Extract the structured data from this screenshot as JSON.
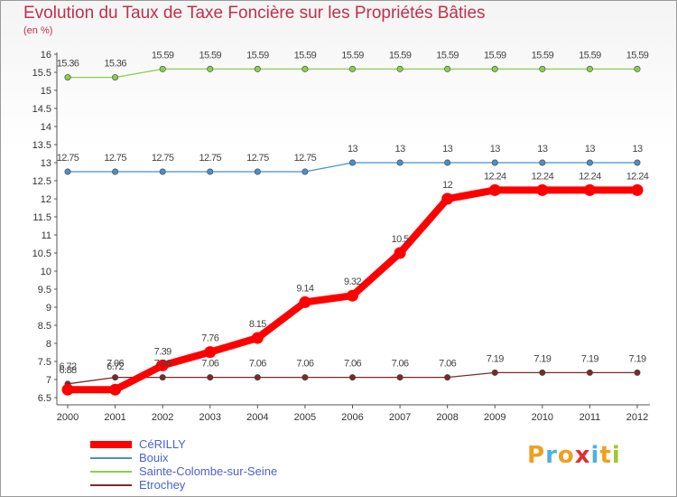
{
  "chart_data": {
    "type": "line",
    "title": "Evolution du Taux de Taxe Foncière sur les Propriétés Bâties",
    "ylabel": "(en %)",
    "xlabel": "",
    "x": [
      "2000",
      "2001",
      "2002",
      "2003",
      "2004",
      "2005",
      "2006",
      "2007",
      "2008",
      "2009",
      "2010",
      "2011",
      "2012"
    ],
    "ylim": [
      6.5,
      16
    ],
    "yticks": [
      6.5,
      7,
      7.5,
      8,
      8.5,
      9,
      9.5,
      10,
      10.5,
      11,
      11.5,
      12,
      12.5,
      13,
      13.5,
      14,
      14.5,
      15,
      15.5,
      16
    ],
    "grid": false,
    "legend_position": "bottom-left",
    "series": [
      {
        "name": "CéRILLY",
        "color": "#ff0000",
        "values": [
          6.72,
          6.72,
          7.39,
          7.76,
          8.15,
          9.14,
          9.32,
          10.5,
          12,
          12.24,
          12.24,
          12.24,
          12.24
        ],
        "labels": [
          "6.72",
          "6.72",
          "7.39",
          "7.76",
          "8.15",
          "9.14",
          "9.32",
          "10.5",
          "12",
          "12.24",
          "12.24",
          "12.24",
          "12.24"
        ]
      },
      {
        "name": "Bouix",
        "color": "#4a8fc8",
        "values": [
          12.75,
          12.75,
          12.75,
          12.75,
          12.75,
          12.75,
          13,
          13,
          13,
          13,
          13,
          13,
          13
        ],
        "labels": [
          "12.75",
          "12.75",
          "12.75",
          "12.75",
          "12.75",
          "12.75",
          "13",
          "13",
          "13",
          "13",
          "13",
          "13",
          "13"
        ]
      },
      {
        "name": "Sainte-Colombe-sur-Seine",
        "color": "#88d04a",
        "values": [
          15.36,
          15.36,
          15.59,
          15.59,
          15.59,
          15.59,
          15.59,
          15.59,
          15.59,
          15.59,
          15.59,
          15.59,
          15.59
        ],
        "labels": [
          "15.36",
          "15.36",
          "15.59",
          "15.59",
          "15.59",
          "15.59",
          "15.59",
          "15.59",
          "15.59",
          "15.59",
          "15.59",
          "15.59",
          "15.59"
        ]
      },
      {
        "name": "Etrochey",
        "color": "#7a2a2a",
        "values": [
          6.88,
          7.06,
          7.06,
          7.06,
          7.06,
          7.06,
          7.06,
          7.06,
          7.06,
          7.19,
          7.19,
          7.19,
          7.19
        ],
        "labels": [
          "6.88",
          "7.06",
          "7.06",
          "7.06",
          "7.06",
          "7.06",
          "7.06",
          "7.06",
          "7.06",
          "7.19",
          "7.19",
          "7.19",
          "7.19"
        ]
      }
    ]
  },
  "brand": {
    "letters": [
      "P",
      "r",
      "o",
      "x",
      "i",
      "t",
      "i"
    ],
    "colors": [
      "#f0a020",
      "#50b0e0",
      "#f0a020",
      "#e03030",
      "#50b0e0",
      "#f0a020",
      "#a0c830"
    ]
  }
}
